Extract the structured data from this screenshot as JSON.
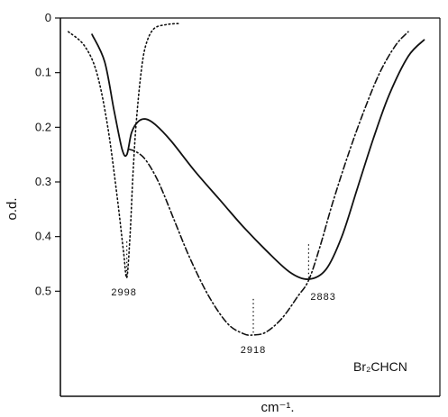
{
  "chart_data": {
    "type": "line",
    "title": "",
    "xlabel": "cm⁻¹.",
    "ylabel": "o.d.",
    "ylim": [
      0,
      0.6
    ],
    "y_reversed": true,
    "grid": false,
    "x_ticks_labeled": false,
    "y_ticks": [
      {
        "value": 0,
        "label": "0"
      },
      {
        "value": 0.1,
        "label": "0.1"
      },
      {
        "value": 0.2,
        "label": "0.2"
      },
      {
        "value": 0.3,
        "label": "0.3"
      },
      {
        "value": 0.4,
        "label": "0.4"
      },
      {
        "value": 0.5,
        "label": "0.5"
      }
    ],
    "annotation": "Br₂CHCN",
    "peak_labels": [
      {
        "label": "2998",
        "x": 2998,
        "y": 0.475
      },
      {
        "label": "2918",
        "x": 2918,
        "y": 0.58
      },
      {
        "label": "2883",
        "x": 2883,
        "y": 0.48
      }
    ],
    "series": [
      {
        "style": "solid",
        "points": [
          [
            3020,
            0.03
          ],
          [
            3012,
            0.08
          ],
          [
            3006,
            0.17
          ],
          [
            3001,
            0.24
          ],
          [
            2998,
            0.25
          ],
          [
            2995,
            0.21
          ],
          [
            2991,
            0.19
          ],
          [
            2986,
            0.185
          ],
          [
            2980,
            0.195
          ],
          [
            2970,
            0.225
          ],
          [
            2955,
            0.28
          ],
          [
            2940,
            0.33
          ],
          [
            2925,
            0.38
          ],
          [
            2910,
            0.425
          ],
          [
            2895,
            0.465
          ],
          [
            2883,
            0.478
          ],
          [
            2872,
            0.46
          ],
          [
            2862,
            0.4
          ],
          [
            2852,
            0.31
          ],
          [
            2842,
            0.22
          ],
          [
            2832,
            0.14
          ],
          [
            2820,
            0.07
          ],
          [
            2810,
            0.04
          ]
        ]
      },
      {
        "style": "dotted",
        "points": [
          [
            3035,
            0.025
          ],
          [
            3025,
            0.05
          ],
          [
            3017,
            0.1
          ],
          [
            3010,
            0.2
          ],
          [
            3004,
            0.33
          ],
          [
            3000,
            0.43
          ],
          [
            2998,
            0.475
          ],
          [
            2996,
            0.4
          ],
          [
            2994,
            0.28
          ],
          [
            2992,
            0.19
          ],
          [
            2989,
            0.1
          ],
          [
            2986,
            0.05
          ],
          [
            2981,
            0.02
          ],
          [
            2973,
            0.012
          ],
          [
            2965,
            0.01
          ]
        ]
      },
      {
        "style": "dash-dot",
        "points": [
          [
            2997,
            0.24
          ],
          [
            2992,
            0.245
          ],
          [
            2986,
            0.26
          ],
          [
            2978,
            0.3
          ],
          [
            2968,
            0.37
          ],
          [
            2958,
            0.44
          ],
          [
            2946,
            0.51
          ],
          [
            2934,
            0.56
          ],
          [
            2924,
            0.578
          ],
          [
            2918,
            0.58
          ],
          [
            2910,
            0.575
          ],
          [
            2900,
            0.55
          ],
          [
            2890,
            0.51
          ],
          [
            2883,
            0.48
          ],
          [
            2876,
            0.42
          ],
          [
            2868,
            0.34
          ],
          [
            2858,
            0.25
          ],
          [
            2848,
            0.17
          ],
          [
            2838,
            0.1
          ],
          [
            2828,
            0.05
          ],
          [
            2820,
            0.025
          ]
        ]
      }
    ]
  }
}
